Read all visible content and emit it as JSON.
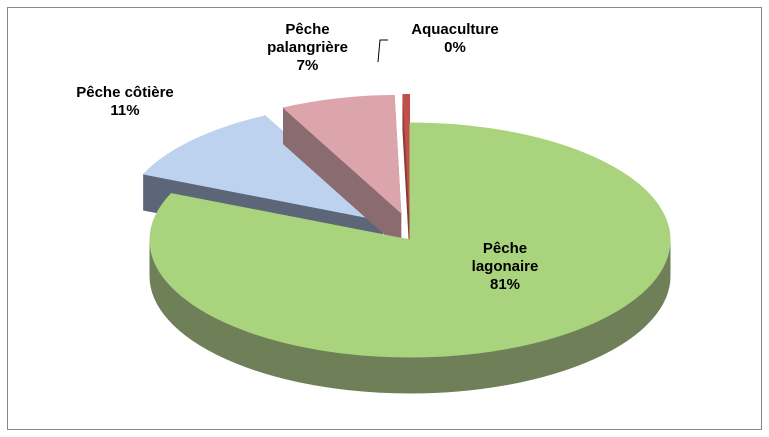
{
  "chart_data": {
    "type": "pie",
    "categories": [
      "Pêche lagonaire",
      "Pêche côtière",
      "Pêche palangrière",
      "Aquaculture"
    ],
    "values": [
      81,
      11,
      7,
      0.4
    ],
    "value_labels": [
      "81%",
      "11%",
      "7%",
      "0%"
    ],
    "colors": [
      "#a9d37c",
      "#bcd2ee",
      "#dca4ab",
      "#c0504d"
    ],
    "side_colors": [
      "#6f7f58",
      "#5d6678",
      "#8a6b6f",
      "#8e3a38"
    ]
  }
}
